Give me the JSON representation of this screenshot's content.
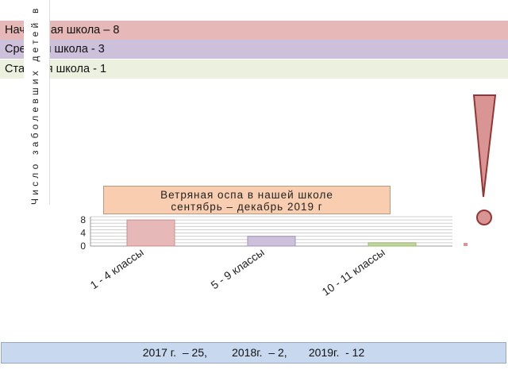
{
  "bands": [
    {
      "text": "Начальная школа – 8",
      "color": "#e6b8b7"
    },
    {
      "text": "Средняя школа - 3",
      "color": "#ccc0da"
    },
    {
      "text": "Старшая школа - 1",
      "color": "#ebf1de"
    }
  ],
  "vertical_label": "Число заболевших детей в школе",
  "footer_text": "2017 г.  – 25,        2018г.  – 2,       2019г.  - 12",
  "colors": {
    "exclamation_fill": "#d99594",
    "exclamation_stroke": "#943634",
    "title_bg": "#f9ceb0",
    "footer_bg": "#c8d8ee"
  },
  "chart_data": {
    "type": "bar",
    "title_lines": [
      "Ветряная оспа в нашей школе",
      "сентябрь – декабрь 2019 г"
    ],
    "categories": [
      "1 - 4 классы",
      "5 - 9 классы",
      "10 - 11 классы"
    ],
    "values": [
      8,
      3,
      1
    ],
    "bar_colors": [
      "#e6b8b7",
      "#ccc0da",
      "#c3d69b"
    ],
    "bar_stroke_colors": [
      "#c98f8e",
      "#a593bd",
      "#9bb86b"
    ],
    "ylim": [
      0,
      9
    ],
    "yticks": [
      0,
      4,
      8
    ],
    "grid": true,
    "legend": "none"
  }
}
